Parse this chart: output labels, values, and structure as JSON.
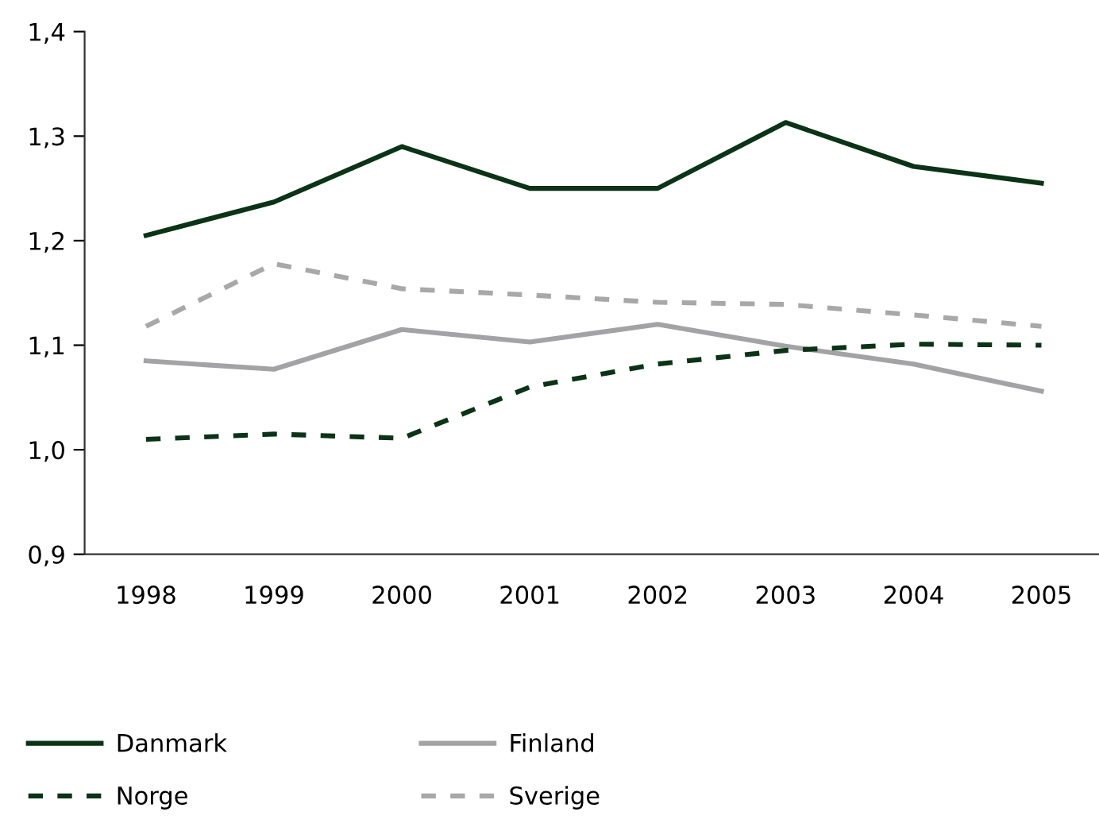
{
  "chart_data": {
    "type": "line",
    "categories": [
      "1998",
      "1999",
      "2000",
      "2001",
      "2002",
      "2003",
      "2004",
      "2005"
    ],
    "series": [
      {
        "name": "Danmark",
        "color": "#0b3316",
        "line_style": "solid",
        "values": [
          1.205,
          1.237,
          1.29,
          1.25,
          1.25,
          1.313,
          1.271,
          1.255
        ]
      },
      {
        "name": "Finland",
        "color": "#a3a3a6",
        "line_style": "solid",
        "values": [
          1.085,
          1.077,
          1.115,
          1.103,
          1.12,
          1.099,
          1.082,
          1.056
        ]
      },
      {
        "name": "Norge",
        "color": "#0b3316",
        "line_style": "dashed",
        "values": [
          1.01,
          1.015,
          1.011,
          1.06,
          1.082,
          1.095,
          1.101,
          1.1
        ]
      },
      {
        "name": "Sverige",
        "color": "#a8a8a8",
        "line_style": "dashed",
        "values": [
          1.118,
          1.178,
          1.154,
          1.148,
          1.141,
          1.139,
          1.129,
          1.118
        ]
      }
    ],
    "ylim": [
      0.9,
      1.4
    ],
    "yticks": [
      {
        "value": 0.9,
        "label": "0,9"
      },
      {
        "value": 1.0,
        "label": "1,0"
      },
      {
        "value": 1.1,
        "label": "1,1"
      },
      {
        "value": 1.2,
        "label": "1,2"
      },
      {
        "value": 1.3,
        "label": "1,3"
      },
      {
        "value": 1.4,
        "label": "1,4"
      }
    ],
    "grid": false,
    "legend": "bottom",
    "marker": "none"
  }
}
